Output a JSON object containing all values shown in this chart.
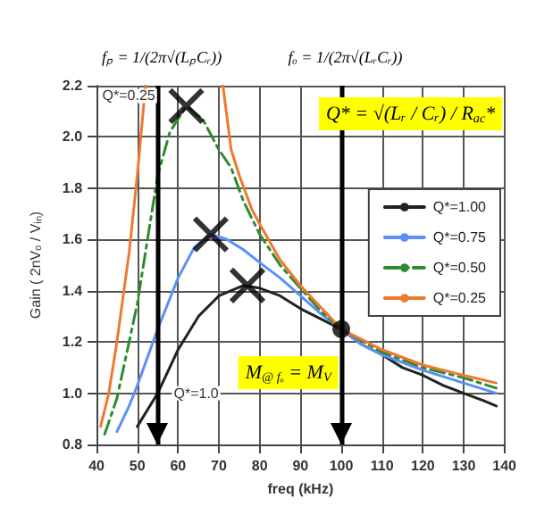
{
  "chart_data": {
    "type": "line",
    "xlabel": "freq (kHz)",
    "ylabel": "Gain ( 2nVₒ / Vᵢₙ)",
    "xlim": [
      40,
      140
    ],
    "xticks": [
      40,
      50,
      60,
      70,
      80,
      90,
      100,
      110,
      120,
      130,
      140
    ],
    "ylim": [
      0.8,
      2.2
    ],
    "yticks": [
      0.8,
      {
        "value": 1,
        "label": "1.0"
      },
      1.2,
      1.4,
      1.6,
      1.8,
      {
        "value": 2,
        "label": "2.0"
      },
      2.2
    ],
    "grid": true,
    "legend": "top right",
    "marker": "none",
    "series": [
      {
        "name": "Q*=1.00",
        "color": "#222222",
        "line_style": "solid",
        "x": [
          50,
          55,
          60,
          65,
          70,
          76,
          80,
          85,
          90,
          95,
          100,
          105,
          110,
          115,
          120,
          125,
          130,
          135,
          138
        ],
        "values": [
          0.87,
          1.0,
          1.17,
          1.3,
          1.38,
          1.42,
          1.41,
          1.38,
          1.33,
          1.29,
          1.25,
          1.19,
          1.15,
          1.1,
          1.07,
          1.03,
          1.0,
          0.97,
          0.95
        ]
      },
      {
        "name": "Q*=0.75",
        "color": "#5b8ff9",
        "line_style": "solid",
        "x": [
          45,
          48,
          50,
          55,
          60,
          64,
          68,
          72,
          76,
          80,
          85,
          90,
          95,
          100,
          105,
          110,
          120,
          130,
          138
        ],
        "values": [
          0.85,
          0.95,
          1.03,
          1.25,
          1.45,
          1.57,
          1.62,
          1.6,
          1.56,
          1.51,
          1.45,
          1.38,
          1.31,
          1.25,
          1.19,
          1.15,
          1.09,
          1.04,
          1.0
        ]
      },
      {
        "name": "Q*=0.50",
        "color": "#2e8b2e",
        "line_style": "dashed",
        "x": [
          42,
          45,
          48,
          50,
          53,
          55,
          58,
          62,
          66,
          70,
          73,
          76,
          80,
          85,
          90,
          95,
          100,
          110,
          120,
          130,
          138
        ],
        "values": [
          0.84,
          0.98,
          1.2,
          1.35,
          1.65,
          1.85,
          2.02,
          2.12,
          2.07,
          1.95,
          1.88,
          1.75,
          1.62,
          1.5,
          1.41,
          1.32,
          1.25,
          1.16,
          1.1,
          1.06,
          1.02
        ]
      },
      {
        "name": "Q*=0.25",
        "color": "#f07830",
        "line_style": "solid",
        "x": [
          41,
          43,
          45,
          48,
          50,
          52,
          61,
          71,
          73,
          75,
          78,
          80,
          85,
          90,
          100,
          110,
          120,
          130,
          138
        ],
        "values": [
          0.87,
          1.0,
          1.2,
          1.55,
          1.85,
          2.2,
          null,
          2.2,
          1.95,
          1.85,
          1.72,
          1.66,
          1.52,
          1.42,
          1.25,
          1.17,
          1.11,
          1.07,
          1.04
        ]
      },
      {
        "type": "scatter",
        "marker": "cross",
        "color": "#000000",
        "x": [
          62,
          68,
          77
        ],
        "values": [
          2.12,
          1.62,
          1.42
        ]
      },
      {
        "type": "scatter",
        "marker": "circle",
        "color": "#000000",
        "x": [
          100
        ],
        "values": [
          1.25
        ]
      }
    ],
    "ref_lines": [
      {
        "axis": "x",
        "value": 55,
        "color": "#000000"
      },
      {
        "axis": "x",
        "value": 100,
        "color": "#000000"
      }
    ],
    "annotations": [
      "Q*=0.25",
      "Q*=1.0",
      "Q* = √(Lᵣ / Cᵣ) / R$_{ac}$*",
      "M$_{@ fₒ}$ = M$_{V}$",
      "fₚ = 1/(2π√(LₚCᵣ))",
      "fₒ = 1/(2π√(LᵣCᵣ))"
    ]
  }
}
